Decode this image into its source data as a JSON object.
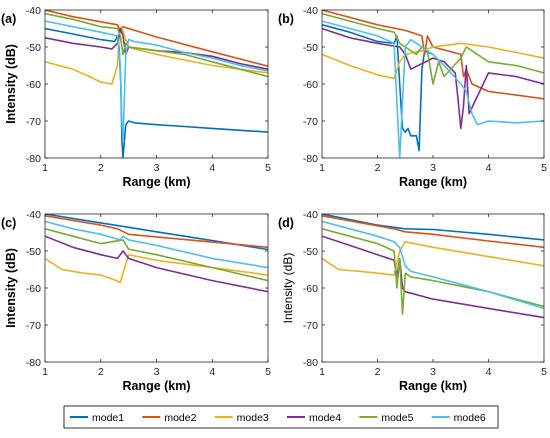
{
  "chart_data": [
    {
      "type": "line",
      "panel_label": "(a)",
      "xlabel": "Range (km)",
      "ylabel": "Intensity (dB)",
      "xlim": [
        1,
        5
      ],
      "ylim": [
        -80,
        -40
      ],
      "xticks": [
        1,
        2,
        3,
        4,
        5
      ],
      "yticks": [
        -40,
        -50,
        -60,
        -70,
        -80
      ],
      "grid": false,
      "series": [
        {
          "name": "mode1",
          "x": [
            1.0,
            1.5,
            2.0,
            2.25,
            2.3,
            2.33,
            2.36,
            2.38,
            2.4,
            2.42,
            2.45,
            2.5,
            2.6,
            3.0,
            3.5,
            4.0,
            4.5,
            5.0
          ],
          "y": [
            -45,
            -46.5,
            -48,
            -48.5,
            -47,
            -50,
            -60,
            -75,
            -80,
            -76,
            -71,
            -70,
            -70.5,
            -71,
            -71.5,
            -72,
            -72.5,
            -73
          ]
        },
        {
          "name": "mode2",
          "x": [
            1.0,
            1.5,
            2.0,
            2.3,
            2.35,
            2.4,
            2.5,
            3.0,
            4.0,
            5.0
          ],
          "y": [
            -40,
            -41.8,
            -43.2,
            -44,
            -46,
            -44.5,
            -45,
            -47.3,
            -51.3,
            -55.2
          ]
        },
        {
          "name": "mode3",
          "x": [
            1.0,
            1.5,
            1.8,
            2.0,
            2.2,
            2.3,
            2.33,
            2.37,
            2.45,
            2.5,
            2.6,
            3.0,
            3.5,
            4.0,
            4.5,
            5.0
          ],
          "y": [
            -54,
            -56,
            -58,
            -59.5,
            -60,
            -55,
            -47,
            -44.5,
            -48,
            -50,
            -50.5,
            -52,
            -53.5,
            -55,
            -56,
            -57
          ]
        },
        {
          "name": "mode4",
          "x": [
            1.0,
            1.5,
            2.0,
            2.2,
            2.3,
            2.35,
            2.4,
            2.45,
            2.5,
            3.0,
            3.5,
            4.0,
            4.5,
            5.0
          ],
          "y": [
            -47.5,
            -49,
            -50,
            -50.5,
            -49,
            -45,
            -47,
            -52,
            -50,
            -51,
            -51.5,
            -52.5,
            -54.5,
            -56
          ]
        },
        {
          "name": "mode5",
          "x": [
            1.0,
            1.5,
            2.0,
            2.3,
            2.35,
            2.4,
            2.45,
            2.5,
            3.0,
            3.5,
            4.0,
            4.5,
            5.0
          ],
          "y": [
            -41,
            -42.5,
            -44.5,
            -45,
            -47,
            -52,
            -49,
            -50,
            -51,
            -52,
            -54,
            -56,
            -58
          ]
        },
        {
          "name": "mode6",
          "x": [
            1.0,
            1.5,
            2.0,
            2.3,
            2.35,
            2.38,
            2.4,
            2.42,
            2.45,
            2.5,
            2.6,
            3.0,
            3.5,
            4.0,
            4.5,
            5.0
          ],
          "y": [
            -43,
            -44.5,
            -46,
            -47,
            -55,
            -70,
            -75,
            -65,
            -52,
            -48,
            -48.5,
            -49.5,
            -51.5,
            -53,
            -55,
            -56.5
          ]
        }
      ]
    },
    {
      "type": "line",
      "panel_label": "(b)",
      "xlabel": "Range (km)",
      "ylabel": "",
      "xlim": [
        1,
        5
      ],
      "ylim": [
        -80,
        -40
      ],
      "xticks": [
        1,
        2,
        3,
        4,
        5
      ],
      "yticks": [
        -40,
        -50,
        -60,
        -70,
        -80
      ],
      "grid": false,
      "series": [
        {
          "name": "mode1",
          "x": [
            1.0,
            1.5,
            2.0,
            2.3,
            2.35,
            2.4,
            2.45,
            2.5,
            2.55,
            2.6,
            2.7,
            2.75,
            2.8,
            2.85,
            3.0
          ],
          "y": [
            -44,
            -46,
            -48.5,
            -49,
            -47,
            -60,
            -72,
            -73,
            -72,
            -74,
            -74,
            -78,
            -56,
            -51,
            -52
          ]
        },
        {
          "name": "mode2",
          "x": [
            1.0,
            1.5,
            2.0,
            2.5,
            2.8,
            2.85,
            2.9,
            3.0,
            3.5,
            3.55,
            3.6,
            3.7,
            4.0,
            4.5,
            5.0
          ],
          "y": [
            -40,
            -42,
            -44,
            -45.5,
            -47,
            -52,
            -47,
            -50,
            -52,
            -58,
            -56,
            -60,
            -62,
            -63,
            -64
          ]
        },
        {
          "name": "mode3",
          "x": [
            1.0,
            1.5,
            2.0,
            2.3,
            2.4,
            2.5,
            2.8,
            3.0,
            3.5,
            4.0,
            4.5,
            5.0
          ],
          "y": [
            -52,
            -55,
            -57.5,
            -58.5,
            -54,
            -52,
            -51,
            -50,
            -49,
            -50,
            -51.5,
            -53
          ]
        },
        {
          "name": "mode4",
          "x": [
            1.0,
            1.5,
            2.0,
            2.4,
            2.5,
            2.6,
            3.0,
            3.2,
            3.4,
            3.45,
            3.5,
            3.55,
            3.6,
            3.65,
            4.0,
            4.5,
            5.0
          ],
          "y": [
            -45,
            -47.5,
            -49,
            -50,
            -52,
            -56,
            -53,
            -54,
            -57,
            -64,
            -72,
            -66,
            -55,
            -68,
            -57,
            -58,
            -60
          ]
        },
        {
          "name": "mode5",
          "x": [
            1.0,
            1.5,
            2.0,
            2.3,
            2.4,
            2.5,
            2.7,
            2.8,
            2.9,
            3.0,
            3.1,
            3.2,
            3.5,
            3.6,
            4.0,
            4.5,
            5.0
          ],
          "y": [
            -41,
            -43,
            -45,
            -46,
            -49,
            -50,
            -52,
            -50,
            -51,
            -60,
            -54,
            -58,
            -53,
            -50,
            -54,
            -55,
            -57
          ]
        },
        {
          "name": "mode6",
          "x": [
            1.0,
            1.5,
            2.0,
            2.3,
            2.35,
            2.4,
            2.45,
            2.5,
            2.6,
            2.8,
            3.0,
            3.2,
            3.5,
            3.6,
            3.7,
            3.8,
            4.0,
            4.5,
            5.0
          ],
          "y": [
            -43,
            -45,
            -47,
            -49,
            -65,
            -80,
            -65,
            -50,
            -48,
            -50,
            -52,
            -55,
            -60,
            -62,
            -68,
            -71,
            -70,
            -70.5,
            -70
          ]
        }
      ]
    },
    {
      "type": "line",
      "panel_label": "(c)",
      "xlabel": "Range (km)",
      "ylabel": "Intensity (dB)",
      "xlim": [
        1,
        5
      ],
      "ylim": [
        -80,
        -40
      ],
      "xticks": [
        1,
        2,
        3,
        4,
        5
      ],
      "yticks": [
        -40,
        -50,
        -60,
        -70,
        -80
      ],
      "grid": false,
      "series": [
        {
          "name": "mode1",
          "x": [
            1.0,
            2.0,
            3.0,
            4.0,
            5.0
          ],
          "y": [
            -40,
            -42.4,
            -44.8,
            -47.2,
            -49.6
          ]
        },
        {
          "name": "mode2",
          "x": [
            1.0,
            2.0,
            2.3,
            2.5,
            3.0,
            4.0,
            5.0
          ],
          "y": [
            -40.5,
            -43,
            -44,
            -45.5,
            -46.2,
            -47.6,
            -49
          ]
        },
        {
          "name": "mode3",
          "x": [
            1.0,
            1.3,
            1.7,
            2.0,
            2.2,
            2.35,
            2.4,
            2.5,
            3.0,
            4.0,
            5.0
          ],
          "y": [
            -52,
            -55,
            -56,
            -56.5,
            -57.5,
            -58.5,
            -56,
            -51,
            -52.5,
            -54.5,
            -56.5
          ]
        },
        {
          "name": "mode4",
          "x": [
            1.0,
            1.5,
            2.0,
            2.3,
            2.4,
            2.5,
            3.0,
            4.0,
            5.0
          ],
          "y": [
            -46,
            -49,
            -51,
            -52,
            -50,
            -52,
            -54.5,
            -58,
            -61
          ]
        },
        {
          "name": "mode5",
          "x": [
            1.0,
            1.5,
            2.0,
            2.4,
            2.5,
            3.0,
            4.0,
            5.0
          ],
          "y": [
            -44,
            -46,
            -48,
            -47,
            -49.5,
            -51,
            -54.5,
            -58
          ]
        },
        {
          "name": "mode6",
          "x": [
            1.0,
            1.5,
            2.0,
            2.35,
            2.4,
            2.5,
            3.0,
            4.0,
            5.0
          ],
          "y": [
            -42,
            -44,
            -45.5,
            -47,
            -46,
            -47,
            -48.5,
            -52,
            -54.5
          ]
        }
      ]
    },
    {
      "type": "line",
      "panel_label": "(d)",
      "xlabel": "Range (km)",
      "ylabel": "Intensity (dB)",
      "xlim": [
        1,
        5
      ],
      "ylim": [
        -80,
        -40
      ],
      "xticks": [
        1,
        2,
        3,
        4,
        5
      ],
      "yticks": [
        -40,
        -50,
        -60,
        -70,
        -80
      ],
      "grid": false,
      "series": [
        {
          "name": "mode1",
          "x": [
            1.0,
            2.0,
            2.5,
            3.0,
            4.0,
            5.0
          ],
          "y": [
            -40,
            -43,
            -44,
            -44.2,
            -45.5,
            -47
          ]
        },
        {
          "name": "mode2",
          "x": [
            1.0,
            2.0,
            2.3,
            2.5,
            3.0,
            4.0,
            5.0
          ],
          "y": [
            -40.5,
            -43.2,
            -44,
            -44.8,
            -45.5,
            -47.3,
            -49
          ]
        },
        {
          "name": "mode3",
          "x": [
            1.0,
            1.3,
            1.7,
            2.0,
            2.3,
            2.4,
            2.5,
            3.0,
            4.0,
            5.0
          ],
          "y": [
            -52,
            -55,
            -55.5,
            -56,
            -56.5,
            -50,
            -47.5,
            -49,
            -51.5,
            -54
          ]
        },
        {
          "name": "mode4",
          "x": [
            1.0,
            1.5,
            2.0,
            2.3,
            2.35,
            2.4,
            2.45,
            2.5,
            3.0,
            4.0,
            5.0
          ],
          "y": [
            -46,
            -48.5,
            -51,
            -52.5,
            -57,
            -52,
            -60,
            -61,
            -63,
            -65.5,
            -68
          ]
        },
        {
          "name": "mode5",
          "x": [
            1.0,
            1.5,
            2.0,
            2.3,
            2.35,
            2.4,
            2.45,
            2.5,
            2.6,
            3.0,
            4.0,
            5.0
          ],
          "y": [
            -44,
            -46,
            -48,
            -50,
            -60,
            -52,
            -67,
            -56,
            -57,
            -58,
            -61,
            -65
          ]
        },
        {
          "name": "mode6",
          "x": [
            1.0,
            1.5,
            2.0,
            2.3,
            2.4,
            2.5,
            2.6,
            3.0,
            4.0,
            5.0
          ],
          "y": [
            -42,
            -44,
            -46,
            -47.5,
            -49,
            -54,
            -55.5,
            -57,
            -61,
            -65.5
          ]
        }
      ]
    }
  ],
  "legend": {
    "placement": "bottom",
    "entries": [
      {
        "name": "mode1",
        "color": "#0072BD"
      },
      {
        "name": "mode2",
        "color": "#D95319"
      },
      {
        "name": "mode3",
        "color": "#EDB120"
      },
      {
        "name": "mode4",
        "color": "#7E2F8E"
      },
      {
        "name": "mode5",
        "color": "#77AC30"
      },
      {
        "name": "mode6",
        "color": "#4DBEEE"
      }
    ]
  }
}
